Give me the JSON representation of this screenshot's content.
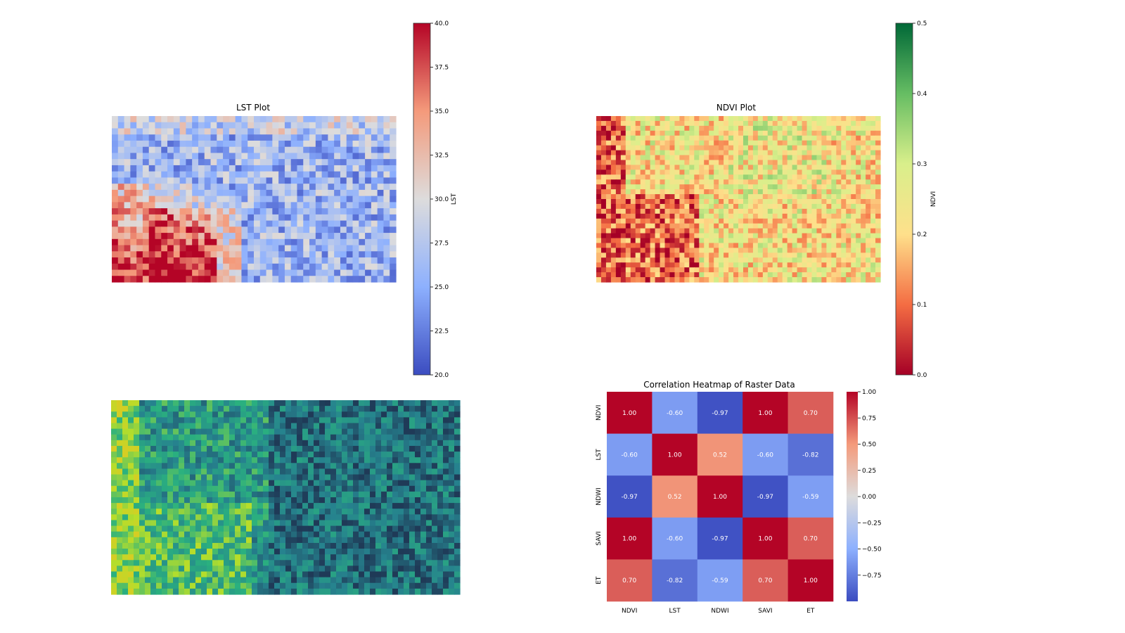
{
  "colors": {
    "lst_scale": [
      "#3b4cc0",
      "#8db0fe",
      "#dddcdc",
      "#f49a7b",
      "#b40426"
    ],
    "ndvi_scale": [
      "#a50026",
      "#f46d43",
      "#fee08b",
      "#d9ef8b",
      "#66bd63",
      "#006837"
    ],
    "et_scale": [
      "#1f3a57",
      "#26828e",
      "#2ab07f",
      "#b5de2b",
      "#e6c51f"
    ]
  },
  "charts": [
    {
      "name": "lst",
      "chart_data": {
        "type": "heatmap",
        "title": "LST Plot",
        "colorbar": {
          "label": "LST",
          "range": [
            20.0,
            40.0
          ],
          "ticks": [
            "20.0",
            "22.5",
            "25.0",
            "27.5",
            "30.0",
            "32.5",
            "35.0",
            "37.5",
            "40.0"
          ]
        },
        "colormap": "coolwarm"
      }
    },
    {
      "name": "ndvi",
      "chart_data": {
        "type": "heatmap",
        "title": "NDVI Plot",
        "colorbar": {
          "label": "NDVI",
          "range": [
            0.0,
            0.5
          ],
          "ticks": [
            "0.0",
            "0.1",
            "0.2",
            "0.3",
            "0.4",
            "0.5"
          ]
        },
        "colormap": "RdYlGn"
      }
    },
    {
      "name": "et",
      "chart_data": {
        "type": "heatmap",
        "title": "",
        "colormap": "viridis"
      }
    },
    {
      "name": "correlation",
      "chart_data": {
        "type": "heatmap",
        "title": "Correlation Heatmap of Raster Data",
        "categories": [
          "NDVI",
          "LST",
          "NDWI",
          "SAVI",
          "ET"
        ],
        "matrix": [
          [
            1.0,
            -0.6,
            -0.97,
            1.0,
            0.7
          ],
          [
            -0.6,
            1.0,
            0.52,
            -0.6,
            -0.82
          ],
          [
            -0.97,
            0.52,
            1.0,
            -0.97,
            -0.59
          ],
          [
            1.0,
            -0.6,
            -0.97,
            1.0,
            0.7
          ],
          [
            0.7,
            -0.82,
            -0.59,
            0.7,
            1.0
          ]
        ],
        "colorbar": {
          "range": [
            -1.0,
            1.0
          ],
          "ticks": [
            "1.00",
            "0.75",
            "0.50",
            "0.25",
            "0.00",
            "−0.25",
            "−0.50",
            "−0.75"
          ],
          "tick_values": [
            1.0,
            0.75,
            0.5,
            0.25,
            0.0,
            -0.25,
            -0.5,
            -0.75
          ]
        },
        "colormap": "coolwarm"
      }
    }
  ]
}
